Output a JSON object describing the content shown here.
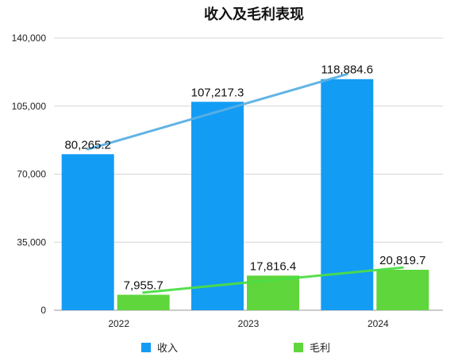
{
  "chart_data": {
    "type": "bar",
    "title": "收入及毛利表现",
    "categories": [
      "2022",
      "2023",
      "2024"
    ],
    "series": [
      {
        "name": "收入",
        "values": [
          80265.2,
          107217.3,
          118884.6
        ],
        "labels": [
          "80,265.2",
          "107,217.3",
          "118,884.6"
        ],
        "color": "#139cf4",
        "trendline": true
      },
      {
        "name": "毛利",
        "values": [
          7955.7,
          17816.4,
          20819.7
        ],
        "labels": [
          "7,955.7",
          "17,816.4",
          "20,819.7"
        ],
        "color": "#5fd63c",
        "trendline": true
      }
    ],
    "y_ticks": [
      "0",
      "35,000",
      "70,000",
      "105,000",
      "140,000"
    ],
    "ylim": [
      0,
      140000
    ],
    "grid": true,
    "legend_position": "bottom",
    "trend_colors": [
      "#5ab0e4",
      "#4cde45"
    ]
  }
}
